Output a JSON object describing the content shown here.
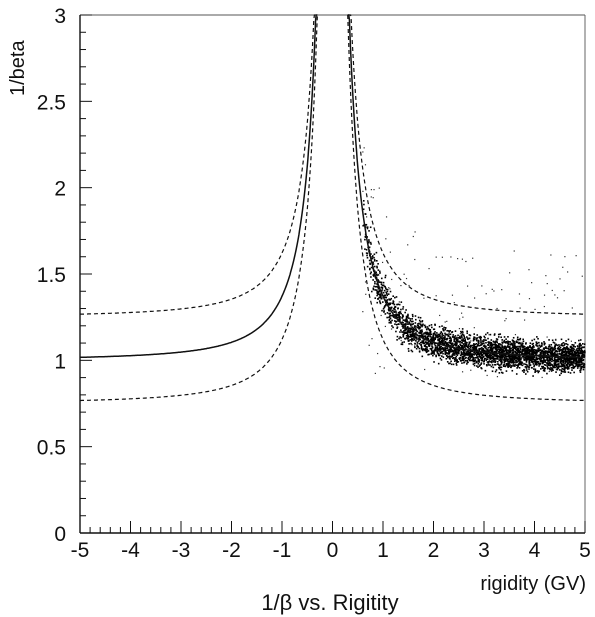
{
  "chart_data": {
    "type": "scatter",
    "title": "",
    "caption": "1/β vs. Rigitity",
    "xlabel": "rigidity (GV)",
    "ylabel": "1/beta",
    "xlim": [
      -5,
      5
    ],
    "ylim": [
      0,
      3
    ],
    "x_ticks": [
      "-5",
      "-4",
      "-3",
      "-2",
      "-1",
      "0",
      "1",
      "2",
      "3",
      "4",
      "5"
    ],
    "y_ticks": [
      "0",
      "0.5",
      "1",
      "1.5",
      "2",
      "2.5",
      "3"
    ],
    "grid": false,
    "legend": "none",
    "curves": [
      {
        "style": "solid",
        "function": "sqrt(1 + (0.938/R)^2)"
      },
      {
        "style": "dashed",
        "function": "sqrt(1 + (0.938/R)^2) + 0.25"
      },
      {
        "style": "dashed",
        "function": "sqrt(1 + (0.938/R)^2) - 0.25"
      }
    ],
    "scatter_band": {
      "x_range": [
        0.6,
        5
      ],
      "center_function": "sqrt(1 + (0.938/R)^2)",
      "points": [
        {
          "x": 0.7,
          "y": 1.95
        },
        {
          "x": 0.8,
          "y": 1.75
        },
        {
          "x": 1.0,
          "y": 1.68
        },
        {
          "x": 1.2,
          "y": 1.55
        },
        {
          "x": 1.5,
          "y": 1.42
        },
        {
          "x": 2.0,
          "y": 1.28
        },
        {
          "x": 2.5,
          "y": 1.2
        },
        {
          "x": 3.0,
          "y": 1.16
        },
        {
          "x": 3.5,
          "y": 1.14
        },
        {
          "x": 4.0,
          "y": 1.13
        },
        {
          "x": 4.5,
          "y": 1.12
        },
        {
          "x": 5.0,
          "y": 1.11
        }
      ]
    }
  }
}
